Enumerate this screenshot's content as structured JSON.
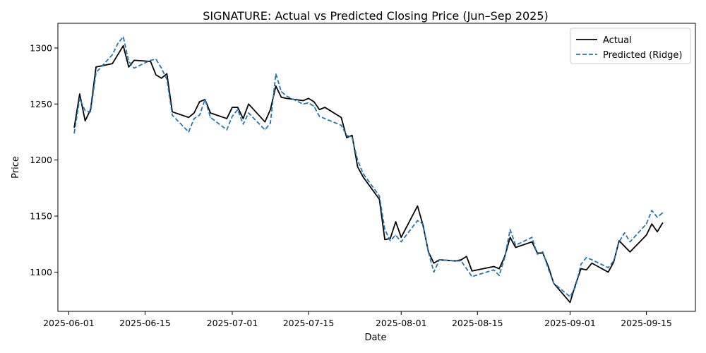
{
  "chart_data": {
    "type": "line",
    "title": "SIGNATURE: Actual vs Predicted Closing Price (Jun–Sep 2025)",
    "xlabel": "Date",
    "ylabel": "Price",
    "xlim": [
      "2025-05-30",
      "2025-09-24"
    ],
    "ylim": [
      1065,
      1322
    ],
    "x_ticks": [
      "2025-06-01",
      "2025-06-15",
      "2025-07-01",
      "2025-07-15",
      "2025-08-01",
      "2025-08-15",
      "2025-09-01",
      "2025-09-15"
    ],
    "y_ticks": [
      1100,
      1150,
      1200,
      1250,
      1300
    ],
    "grid": false,
    "legend_position": "top-right",
    "series": [
      {
        "name": "Actual",
        "color": "#000000",
        "style": "solid",
        "points": [
          [
            "2025-06-02",
            1229
          ],
          [
            "2025-06-03",
            1259
          ],
          [
            "2025-06-04",
            1235
          ],
          [
            "2025-06-05",
            1245
          ],
          [
            "2025-06-06",
            1283
          ],
          [
            "2025-06-09",
            1286
          ],
          [
            "2025-06-10",
            1294
          ],
          [
            "2025-06-11",
            1302
          ],
          [
            "2025-06-12",
            1283
          ],
          [
            "2025-06-13",
            1289
          ],
          [
            "2025-06-16",
            1288
          ],
          [
            "2025-06-17",
            1276
          ],
          [
            "2025-06-18",
            1273
          ],
          [
            "2025-06-19",
            1277
          ],
          [
            "2025-06-20",
            1243
          ],
          [
            "2025-06-23",
            1238
          ],
          [
            "2025-06-24",
            1242
          ],
          [
            "2025-06-25",
            1252
          ],
          [
            "2025-06-26",
            1254
          ],
          [
            "2025-06-27",
            1242
          ],
          [
            "2025-06-30",
            1237
          ],
          [
            "2025-07-01",
            1247
          ],
          [
            "2025-07-02",
            1247
          ],
          [
            "2025-07-03",
            1237
          ],
          [
            "2025-07-04",
            1250
          ],
          [
            "2025-07-07",
            1234
          ],
          [
            "2025-07-08",
            1245
          ],
          [
            "2025-07-09",
            1266
          ],
          [
            "2025-07-10",
            1256
          ],
          [
            "2025-07-11",
            1255
          ],
          [
            "2025-07-14",
            1253
          ],
          [
            "2025-07-15",
            1255
          ],
          [
            "2025-07-16",
            1252
          ],
          [
            "2025-07-17",
            1245
          ],
          [
            "2025-07-18",
            1247
          ],
          [
            "2025-07-21",
            1238
          ],
          [
            "2025-07-22",
            1220
          ],
          [
            "2025-07-23",
            1222
          ],
          [
            "2025-07-24",
            1194
          ],
          [
            "2025-07-25",
            1185
          ],
          [
            "2025-07-28",
            1165
          ],
          [
            "2025-07-29",
            1129
          ],
          [
            "2025-07-30",
            1130
          ],
          [
            "2025-07-31",
            1145
          ],
          [
            "2025-08-01",
            1131
          ],
          [
            "2025-08-04",
            1159
          ],
          [
            "2025-08-05",
            1142
          ],
          [
            "2025-08-06",
            1118
          ],
          [
            "2025-08-07",
            1108
          ],
          [
            "2025-08-08",
            1111
          ],
          [
            "2025-08-11",
            1110
          ],
          [
            "2025-08-12",
            1111
          ],
          [
            "2025-08-13",
            1114
          ],
          [
            "2025-08-14",
            1101
          ],
          [
            "2025-08-18",
            1105
          ],
          [
            "2025-08-19",
            1103
          ],
          [
            "2025-08-20",
            1114
          ],
          [
            "2025-08-21",
            1131
          ],
          [
            "2025-08-22",
            1122
          ],
          [
            "2025-08-25",
            1127
          ],
          [
            "2025-08-26",
            1117
          ],
          [
            "2025-08-27",
            1117
          ],
          [
            "2025-08-28",
            1105
          ],
          [
            "2025-08-29",
            1090
          ],
          [
            "2025-09-01",
            1073
          ],
          [
            "2025-09-02",
            1089
          ],
          [
            "2025-09-03",
            1103
          ],
          [
            "2025-09-04",
            1102
          ],
          [
            "2025-09-05",
            1108
          ],
          [
            "2025-09-08",
            1100
          ],
          [
            "2025-09-09",
            1109
          ],
          [
            "2025-09-10",
            1128
          ],
          [
            "2025-09-12",
            1118
          ],
          [
            "2025-09-15",
            1133
          ],
          [
            "2025-09-16",
            1143
          ],
          [
            "2025-09-17",
            1136
          ],
          [
            "2025-09-18",
            1144
          ]
        ]
      },
      {
        "name": "Predicted (Ridge)",
        "color": "#1f77b4",
        "style": "dashed",
        "points": [
          [
            "2025-06-02",
            1224
          ],
          [
            "2025-06-03",
            1255
          ],
          [
            "2025-06-04",
            1244
          ],
          [
            "2025-06-05",
            1243
          ],
          [
            "2025-06-06",
            1278
          ],
          [
            "2025-06-09",
            1294
          ],
          [
            "2025-06-10",
            1304
          ],
          [
            "2025-06-11",
            1310
          ],
          [
            "2025-06-12",
            1288
          ],
          [
            "2025-06-13",
            1282
          ],
          [
            "2025-06-16",
            1289
          ],
          [
            "2025-06-17",
            1290
          ],
          [
            "2025-06-18",
            1282
          ],
          [
            "2025-06-19",
            1272
          ],
          [
            "2025-06-20",
            1240
          ],
          [
            "2025-06-23",
            1225
          ],
          [
            "2025-06-24",
            1237
          ],
          [
            "2025-06-25",
            1240
          ],
          [
            "2025-06-26",
            1254
          ],
          [
            "2025-06-27",
            1238
          ],
          [
            "2025-06-30",
            1227
          ],
          [
            "2025-07-01",
            1239
          ],
          [
            "2025-07-02",
            1245
          ],
          [
            "2025-07-03",
            1232
          ],
          [
            "2025-07-04",
            1242
          ],
          [
            "2025-07-07",
            1227
          ],
          [
            "2025-07-08",
            1233
          ],
          [
            "2025-07-09",
            1277
          ],
          [
            "2025-07-10",
            1261
          ],
          [
            "2025-07-11",
            1257
          ],
          [
            "2025-07-14",
            1250
          ],
          [
            "2025-07-15",
            1251
          ],
          [
            "2025-07-16",
            1248
          ],
          [
            "2025-07-17",
            1239
          ],
          [
            "2025-07-18",
            1237
          ],
          [
            "2025-07-21",
            1231
          ],
          [
            "2025-07-22",
            1222
          ],
          [
            "2025-07-23",
            1220
          ],
          [
            "2025-07-24",
            1200
          ],
          [
            "2025-07-25",
            1188
          ],
          [
            "2025-07-28",
            1168
          ],
          [
            "2025-07-29",
            1138
          ],
          [
            "2025-07-30",
            1128
          ],
          [
            "2025-07-31",
            1133
          ],
          [
            "2025-08-01",
            1127
          ],
          [
            "2025-08-04",
            1146
          ],
          [
            "2025-08-05",
            1143
          ],
          [
            "2025-08-06",
            1118
          ],
          [
            "2025-08-07",
            1100
          ],
          [
            "2025-08-08",
            1111
          ],
          [
            "2025-08-11",
            1110
          ],
          [
            "2025-08-12",
            1110
          ],
          [
            "2025-08-13",
            1103
          ],
          [
            "2025-08-14",
            1096
          ],
          [
            "2025-08-18",
            1102
          ],
          [
            "2025-08-19",
            1097
          ],
          [
            "2025-08-20",
            1113
          ],
          [
            "2025-08-21",
            1138
          ],
          [
            "2025-08-22",
            1124
          ],
          [
            "2025-08-25",
            1131
          ],
          [
            "2025-08-26",
            1116
          ],
          [
            "2025-08-27",
            1118
          ],
          [
            "2025-08-28",
            1103
          ],
          [
            "2025-08-29",
            1090
          ],
          [
            "2025-09-01",
            1078
          ],
          [
            "2025-09-02",
            1087
          ],
          [
            "2025-09-03",
            1107
          ],
          [
            "2025-09-04",
            1113
          ],
          [
            "2025-09-05",
            1111
          ],
          [
            "2025-09-08",
            1104
          ],
          [
            "2025-09-09",
            1110
          ],
          [
            "2025-09-10",
            1127
          ],
          [
            "2025-09-11",
            1135
          ],
          [
            "2025-09-12",
            1127
          ],
          [
            "2025-09-15",
            1143
          ],
          [
            "2025-09-16",
            1155
          ],
          [
            "2025-09-17",
            1149
          ],
          [
            "2025-09-18",
            1153
          ]
        ]
      }
    ]
  }
}
